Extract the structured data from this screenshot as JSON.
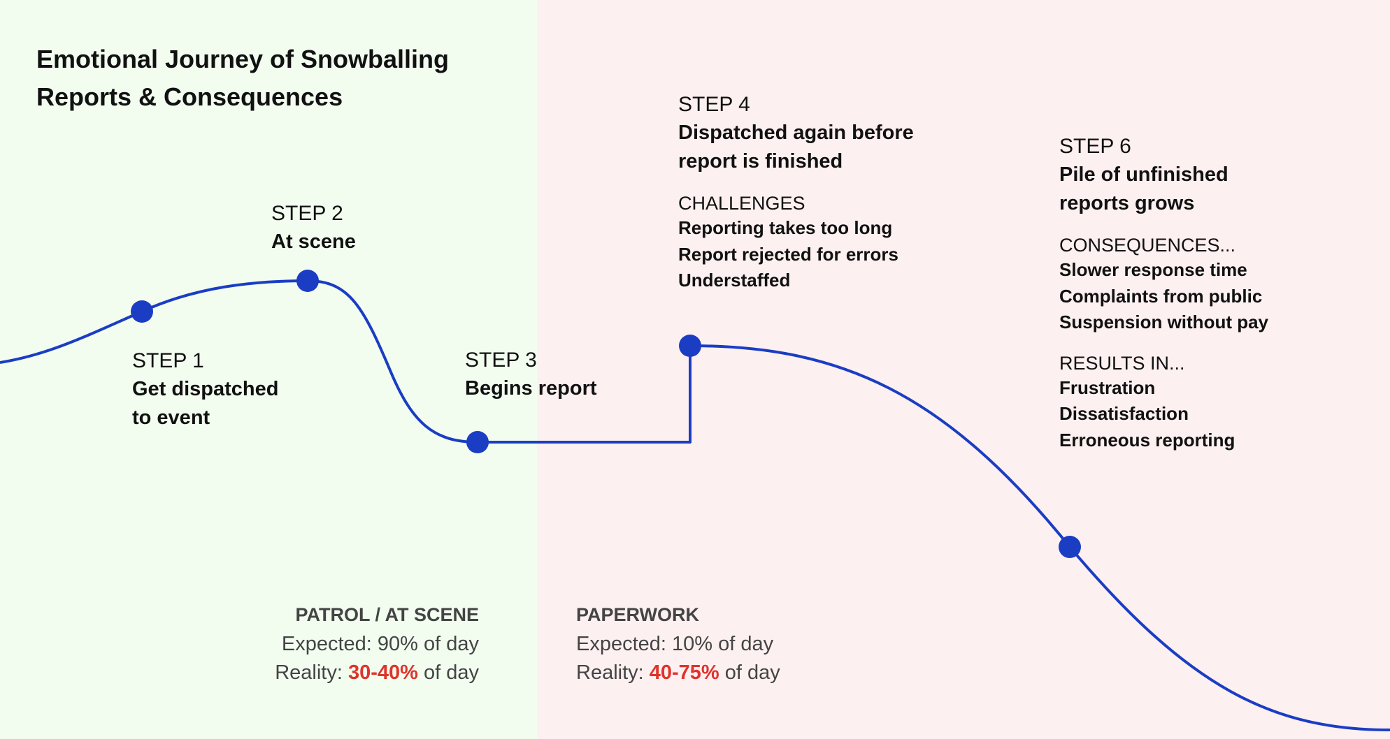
{
  "title": {
    "line1": "Emotional Journey of Snowballing",
    "line2": "Reports & Consequences"
  },
  "steps": [
    {
      "label": "STEP 1",
      "title": [
        "Get dispatched",
        "to event"
      ]
    },
    {
      "label": "STEP 2",
      "title": [
        "At scene"
      ]
    },
    {
      "label": "STEP 3",
      "title": [
        "Begins report"
      ]
    },
    {
      "label": "STEP 4",
      "title": [
        "Dispatched again before",
        "report is finished"
      ],
      "challenges_label": "CHALLENGES",
      "challenges": [
        "Reporting takes too long",
        "Report rejected for errors",
        "Understaffed"
      ]
    },
    {
      "label": "STEP 6",
      "title": [
        "Pile of unfinished",
        "reports grows"
      ],
      "consequences_label": "CONSEQUENCES...",
      "consequences": [
        "Slower response time",
        "Complaints from public",
        "Suspension without pay"
      ],
      "results_label": "RESULTS IN...",
      "results": [
        "Frustration",
        "Dissatisfaction",
        "Erroneous reporting"
      ]
    }
  ],
  "phases": {
    "patrol": {
      "title": "PATROL / AT SCENE",
      "expected": "Expected: 90% of day",
      "reality_prefix": "Reality: ",
      "reality_value": "30-40%",
      "reality_suffix": " of day"
    },
    "paperwork": {
      "title": "PAPERWORK",
      "expected": "Expected: 10% of day",
      "reality_prefix": "Reality: ",
      "reality_value": "40-75%",
      "reality_suffix": " of day"
    }
  },
  "colors": {
    "line": "#1a3dc4",
    "highlight": "#e0332b",
    "patrol_bg": "#f2fdf0",
    "paperwork_bg": "#fdf0f0"
  }
}
